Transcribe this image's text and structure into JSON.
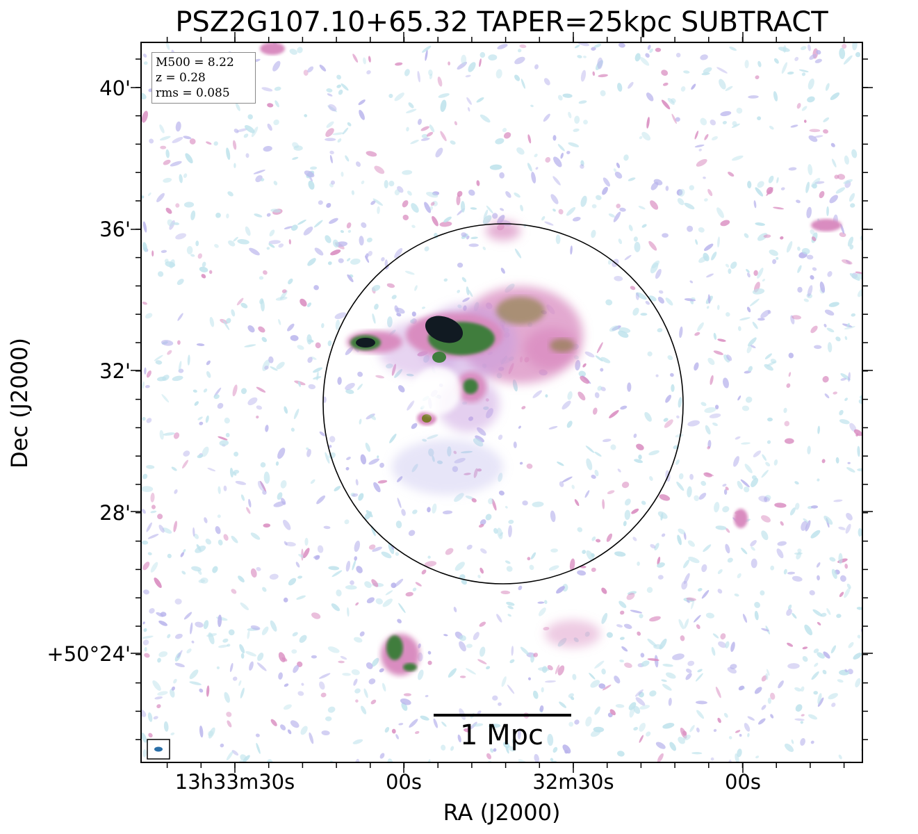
{
  "title": "PSZ2G107.10+65.32 TAPER=25kpc SUBTRACT",
  "axes": {
    "xlabel": "RA (J2000)",
    "ylabel": "Dec (J2000)",
    "xticks": [
      "13h33m30s",
      "00s",
      "32m30s",
      "00s"
    ],
    "yticks": [
      "40'",
      "36'",
      "32'",
      "28'",
      "+50°24'"
    ]
  },
  "info": {
    "m500": "M500 = 8.22",
    "z": "z = 0.28",
    "rms": "rms = 0.085"
  },
  "scalebar": {
    "label": "1 Mpc"
  },
  "colors": {
    "faint": "#bfe3ec",
    "lavender": "#b9b4ec",
    "pink": "#d98cc0",
    "green": "#3f7d3c",
    "olive": "#7a7a2a",
    "dark": "#111a22",
    "beam": "#2a6fa8"
  },
  "icons": [
    "beam-ellipse-icon"
  ]
}
